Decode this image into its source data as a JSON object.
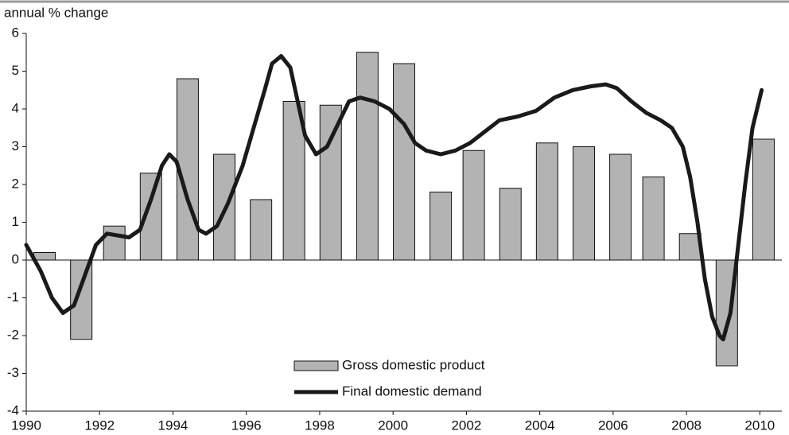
{
  "chart_data": {
    "type": "combo",
    "y_label": "annual % change",
    "xlim": [
      1990,
      2010.6
    ],
    "xticks": [
      1990,
      1992,
      1994,
      1996,
      1998,
      2000,
      2002,
      2004,
      2006,
      2008,
      2010
    ],
    "ylim": [
      -4,
      6
    ],
    "yticks": [
      -4,
      -3,
      -2,
      -1,
      0,
      1,
      2,
      3,
      4,
      5,
      6
    ],
    "series": [
      {
        "name": "Gross domestic product",
        "type": "bar",
        "color": "#b3b3b3",
        "x": [
          1990.5,
          1991.5,
          1992.4,
          1993.4,
          1994.4,
          1995.4,
          1996.4,
          1997.3,
          1998.3,
          1999.3,
          2000.3,
          2001.3,
          2002.2,
          2003.2,
          2004.2,
          2005.2,
          2006.2,
          2007.1,
          2008.1,
          2009.1,
          2010.1
        ],
        "values": [
          0.2,
          -2.1,
          0.9,
          2.3,
          4.8,
          2.8,
          1.6,
          4.2,
          4.1,
          5.5,
          5.2,
          1.8,
          2.9,
          1.9,
          3.1,
          3.0,
          2.8,
          2.2,
          0.7,
          -2.8,
          3.2
        ]
      },
      {
        "name": "Final domestic demand",
        "type": "line",
        "color": "#1a1a1a",
        "x": [
          1990.0,
          1990.4,
          1990.7,
          1991.0,
          1991.3,
          1991.6,
          1991.9,
          1992.2,
          1992.5,
          1992.8,
          1993.1,
          1993.4,
          1993.7,
          1993.9,
          1994.1,
          1994.4,
          1994.7,
          1994.9,
          1995.2,
          1995.5,
          1995.9,
          1996.2,
          1996.5,
          1996.7,
          1996.95,
          1997.2,
          1997.4,
          1997.6,
          1997.9,
          1998.2,
          1998.5,
          1998.8,
          1999.1,
          1999.5,
          1999.9,
          2000.3,
          2000.6,
          2000.9,
          2001.3,
          2001.7,
          2002.1,
          2002.5,
          2002.9,
          2003.4,
          2003.9,
          2004.4,
          2004.9,
          2005.4,
          2005.8,
          2006.1,
          2006.5,
          2006.9,
          2007.3,
          2007.6,
          2007.9,
          2008.1,
          2008.3,
          2008.5,
          2008.7,
          2008.9,
          2009.0,
          2009.2,
          2009.4,
          2009.6,
          2009.8,
          2010.05
        ],
        "values": [
          0.4,
          -0.3,
          -1.0,
          -1.4,
          -1.2,
          -0.4,
          0.4,
          0.7,
          0.65,
          0.6,
          0.8,
          1.6,
          2.5,
          2.8,
          2.6,
          1.6,
          0.8,
          0.7,
          0.9,
          1.5,
          2.5,
          3.5,
          4.5,
          5.2,
          5.4,
          5.1,
          4.2,
          3.3,
          2.8,
          3.0,
          3.6,
          4.2,
          4.3,
          4.2,
          4.0,
          3.6,
          3.1,
          2.9,
          2.8,
          2.9,
          3.1,
          3.4,
          3.7,
          3.8,
          3.95,
          4.3,
          4.5,
          4.6,
          4.65,
          4.55,
          4.2,
          3.9,
          3.7,
          3.5,
          3.0,
          2.2,
          1.0,
          -0.5,
          -1.5,
          -2.0,
          -2.1,
          -1.4,
          0.3,
          2.0,
          3.5,
          4.5
        ]
      }
    ]
  }
}
